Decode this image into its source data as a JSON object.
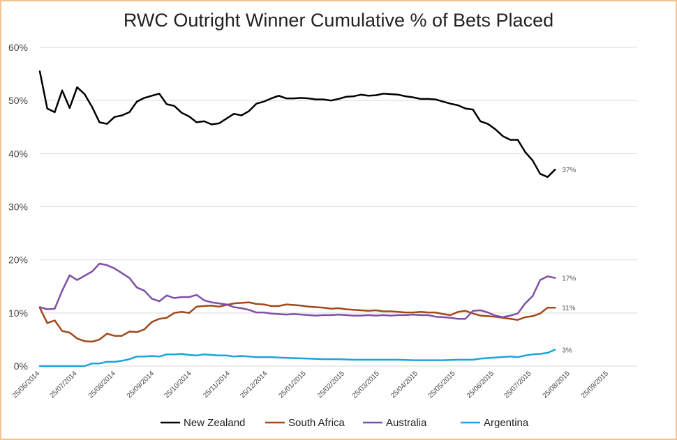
{
  "chart_data": {
    "type": "line",
    "title": "RWC Outright Winner Cumulative % of Bets Placed",
    "xlabel": "",
    "ylabel": "",
    "ylim": [
      0,
      60
    ],
    "yticks": [
      "0%",
      "10%",
      "20%",
      "30%",
      "40%",
      "50%",
      "60%"
    ],
    "grid": "horizontal",
    "legend_position": "bottom",
    "x_tick_labels": [
      "25/06/2014",
      "25/07/2014",
      "25/08/2014",
      "25/09/2014",
      "25/10/2014",
      "25/11/2014",
      "25/12/2014",
      "25/01/2015",
      "25/02/2015",
      "25/03/2015",
      "25/04/2015",
      "25/05/2015",
      "25/06/2015",
      "25/07/2015",
      "25/08/2015",
      "25/09/2015"
    ],
    "x_start": "2014-06-25",
    "x_end": "2015-10-18",
    "series": [
      {
        "name": "New Zealand",
        "color": "#000000",
        "end_label": "37%",
        "points": [
          [
            "2014-06-25",
            55.5
          ],
          [
            "2014-07-01",
            48.5
          ],
          [
            "2014-07-07",
            47.8
          ],
          [
            "2014-07-13",
            51.9
          ],
          [
            "2014-07-19",
            48.6
          ],
          [
            "2014-07-25",
            52.5
          ],
          [
            "2014-07-31",
            51.2
          ],
          [
            "2014-08-06",
            48.8
          ],
          [
            "2014-08-12",
            45.9
          ],
          [
            "2014-08-18",
            45.6
          ],
          [
            "2014-08-24",
            46.9
          ],
          [
            "2014-08-30",
            47.2
          ],
          [
            "2014-09-05",
            47.8
          ],
          [
            "2014-09-11",
            49.8
          ],
          [
            "2014-09-17",
            50.5
          ],
          [
            "2014-09-23",
            50.9
          ],
          [
            "2014-09-29",
            51.3
          ],
          [
            "2014-10-05",
            49.3
          ],
          [
            "2014-10-11",
            49.0
          ],
          [
            "2014-10-17",
            47.7
          ],
          [
            "2014-10-23",
            47.0
          ],
          [
            "2014-10-29",
            45.9
          ],
          [
            "2014-11-04",
            46.1
          ],
          [
            "2014-11-10",
            45.5
          ],
          [
            "2014-11-16",
            45.7
          ],
          [
            "2014-11-22",
            46.6
          ],
          [
            "2014-11-28",
            47.5
          ],
          [
            "2014-12-04",
            47.2
          ],
          [
            "2014-12-10",
            48.0
          ],
          [
            "2014-12-16",
            49.4
          ],
          [
            "2014-12-22",
            49.8
          ],
          [
            "2014-12-28",
            50.4
          ],
          [
            "2015-01-03",
            50.9
          ],
          [
            "2015-01-09",
            50.4
          ],
          [
            "2015-01-15",
            50.4
          ],
          [
            "2015-01-21",
            50.5
          ],
          [
            "2015-01-27",
            50.4
          ],
          [
            "2015-02-02",
            50.2
          ],
          [
            "2015-02-08",
            50.2
          ],
          [
            "2015-02-14",
            50.0
          ],
          [
            "2015-02-20",
            50.3
          ],
          [
            "2015-02-26",
            50.7
          ],
          [
            "2015-03-04",
            50.8
          ],
          [
            "2015-03-10",
            51.1
          ],
          [
            "2015-03-16",
            50.9
          ],
          [
            "2015-03-22",
            51.0
          ],
          [
            "2015-03-28",
            51.3
          ],
          [
            "2015-04-03",
            51.2
          ],
          [
            "2015-04-09",
            51.1
          ],
          [
            "2015-04-15",
            50.8
          ],
          [
            "2015-04-21",
            50.6
          ],
          [
            "2015-04-27",
            50.3
          ],
          [
            "2015-05-03",
            50.3
          ],
          [
            "2015-05-09",
            50.2
          ],
          [
            "2015-05-15",
            49.8
          ],
          [
            "2015-05-21",
            49.4
          ],
          [
            "2015-05-27",
            49.1
          ],
          [
            "2015-06-02",
            48.5
          ],
          [
            "2015-06-08",
            48.3
          ],
          [
            "2015-06-14",
            46.1
          ],
          [
            "2015-06-20",
            45.6
          ],
          [
            "2015-06-26",
            44.6
          ],
          [
            "2015-07-02",
            43.3
          ],
          [
            "2015-07-08",
            42.6
          ],
          [
            "2015-07-14",
            42.6
          ],
          [
            "2015-07-20",
            40.3
          ],
          [
            "2015-07-26",
            38.7
          ],
          [
            "2015-08-01",
            36.2
          ],
          [
            "2015-08-07",
            35.6
          ],
          [
            "2015-08-13",
            37.0
          ]
        ]
      },
      {
        "name": "South Africa",
        "color": "#a0491a",
        "end_label": "11%",
        "points": [
          [
            "2014-06-25",
            11.0
          ],
          [
            "2014-07-01",
            8.1
          ],
          [
            "2014-07-07",
            8.6
          ],
          [
            "2014-07-13",
            6.6
          ],
          [
            "2014-07-19",
            6.3
          ],
          [
            "2014-07-25",
            5.2
          ],
          [
            "2014-07-31",
            4.7
          ],
          [
            "2014-08-06",
            4.6
          ],
          [
            "2014-08-12",
            5.0
          ],
          [
            "2014-08-18",
            6.1
          ],
          [
            "2014-08-24",
            5.7
          ],
          [
            "2014-08-30",
            5.7
          ],
          [
            "2014-09-05",
            6.5
          ],
          [
            "2014-09-11",
            6.4
          ],
          [
            "2014-09-17",
            6.9
          ],
          [
            "2014-09-23",
            8.3
          ],
          [
            "2014-09-29",
            8.9
          ],
          [
            "2014-10-05",
            9.1
          ],
          [
            "2014-10-11",
            10.0
          ],
          [
            "2014-10-17",
            10.2
          ],
          [
            "2014-10-23",
            10.0
          ],
          [
            "2014-10-29",
            11.2
          ],
          [
            "2014-11-04",
            11.3
          ],
          [
            "2014-11-10",
            11.4
          ],
          [
            "2014-11-16",
            11.2
          ],
          [
            "2014-11-22",
            11.5
          ],
          [
            "2014-11-28",
            11.8
          ],
          [
            "2014-12-04",
            11.9
          ],
          [
            "2014-12-10",
            12.0
          ],
          [
            "2014-12-16",
            11.7
          ],
          [
            "2014-12-22",
            11.6
          ],
          [
            "2014-12-28",
            11.3
          ],
          [
            "2015-01-03",
            11.3
          ],
          [
            "2015-01-09",
            11.6
          ],
          [
            "2015-01-15",
            11.5
          ],
          [
            "2015-01-21",
            11.4
          ],
          [
            "2015-01-27",
            11.2
          ],
          [
            "2015-02-02",
            11.1
          ],
          [
            "2015-02-08",
            11.0
          ],
          [
            "2015-02-14",
            10.8
          ],
          [
            "2015-02-20",
            10.9
          ],
          [
            "2015-02-26",
            10.7
          ],
          [
            "2015-03-04",
            10.6
          ],
          [
            "2015-03-10",
            10.5
          ],
          [
            "2015-03-16",
            10.4
          ],
          [
            "2015-03-22",
            10.5
          ],
          [
            "2015-03-28",
            10.3
          ],
          [
            "2015-04-03",
            10.3
          ],
          [
            "2015-04-09",
            10.2
          ],
          [
            "2015-04-15",
            10.1
          ],
          [
            "2015-04-21",
            10.1
          ],
          [
            "2015-04-27",
            10.2
          ],
          [
            "2015-05-03",
            10.1
          ],
          [
            "2015-05-09",
            10.1
          ],
          [
            "2015-05-15",
            9.8
          ],
          [
            "2015-05-21",
            9.6
          ],
          [
            "2015-05-27",
            10.2
          ],
          [
            "2015-06-02",
            10.4
          ],
          [
            "2015-06-08",
            9.9
          ],
          [
            "2015-06-14",
            9.5
          ],
          [
            "2015-06-20",
            9.4
          ],
          [
            "2015-06-26",
            9.3
          ],
          [
            "2015-07-02",
            9.1
          ],
          [
            "2015-07-08",
            8.9
          ],
          [
            "2015-07-14",
            8.7
          ],
          [
            "2015-07-20",
            9.2
          ],
          [
            "2015-07-26",
            9.4
          ],
          [
            "2015-08-01",
            9.9
          ],
          [
            "2015-08-07",
            11.0
          ],
          [
            "2015-08-13",
            11.0
          ]
        ]
      },
      {
        "name": "Australia",
        "color": "#7f4fa8",
        "end_label": "17%",
        "points": [
          [
            "2014-06-25",
            11.1
          ],
          [
            "2014-07-01",
            10.7
          ],
          [
            "2014-07-07",
            10.8
          ],
          [
            "2014-07-13",
            14.2
          ],
          [
            "2014-07-19",
            17.1
          ],
          [
            "2014-07-25",
            16.2
          ],
          [
            "2014-07-31",
            17.0
          ],
          [
            "2014-08-06",
            17.8
          ],
          [
            "2014-08-12",
            19.3
          ],
          [
            "2014-08-18",
            19.0
          ],
          [
            "2014-08-24",
            18.4
          ],
          [
            "2014-08-30",
            17.5
          ],
          [
            "2014-09-05",
            16.6
          ],
          [
            "2014-09-11",
            14.8
          ],
          [
            "2014-09-17",
            14.2
          ],
          [
            "2014-09-23",
            12.7
          ],
          [
            "2014-09-29",
            12.2
          ],
          [
            "2014-10-05",
            13.3
          ],
          [
            "2014-10-11",
            12.8
          ],
          [
            "2014-10-17",
            13.0
          ],
          [
            "2014-10-23",
            13.0
          ],
          [
            "2014-10-29",
            13.4
          ],
          [
            "2014-11-04",
            12.4
          ],
          [
            "2014-11-10",
            12.0
          ],
          [
            "2014-11-16",
            11.8
          ],
          [
            "2014-11-22",
            11.6
          ],
          [
            "2014-11-28",
            11.1
          ],
          [
            "2014-12-04",
            10.9
          ],
          [
            "2014-12-10",
            10.6
          ],
          [
            "2014-12-16",
            10.1
          ],
          [
            "2014-12-22",
            10.1
          ],
          [
            "2014-12-28",
            9.9
          ],
          [
            "2015-01-03",
            9.8
          ],
          [
            "2015-01-09",
            9.7
          ],
          [
            "2015-01-15",
            9.8
          ],
          [
            "2015-01-21",
            9.7
          ],
          [
            "2015-01-27",
            9.6
          ],
          [
            "2015-02-02",
            9.5
          ],
          [
            "2015-02-08",
            9.6
          ],
          [
            "2015-02-14",
            9.6
          ],
          [
            "2015-02-20",
            9.7
          ],
          [
            "2015-02-26",
            9.6
          ],
          [
            "2015-03-04",
            9.5
          ],
          [
            "2015-03-10",
            9.5
          ],
          [
            "2015-03-16",
            9.6
          ],
          [
            "2015-03-22",
            9.5
          ],
          [
            "2015-03-28",
            9.6
          ],
          [
            "2015-04-03",
            9.5
          ],
          [
            "2015-04-09",
            9.6
          ],
          [
            "2015-04-15",
            9.6
          ],
          [
            "2015-04-21",
            9.7
          ],
          [
            "2015-04-27",
            9.6
          ],
          [
            "2015-05-03",
            9.6
          ],
          [
            "2015-05-09",
            9.3
          ],
          [
            "2015-05-15",
            9.2
          ],
          [
            "2015-05-21",
            9.1
          ],
          [
            "2015-05-27",
            8.9
          ],
          [
            "2015-06-02",
            8.9
          ],
          [
            "2015-06-08",
            10.4
          ],
          [
            "2015-06-14",
            10.5
          ],
          [
            "2015-06-20",
            10.1
          ],
          [
            "2015-06-26",
            9.5
          ],
          [
            "2015-07-02",
            9.2
          ],
          [
            "2015-07-08",
            9.5
          ],
          [
            "2015-07-14",
            9.9
          ],
          [
            "2015-07-20",
            11.8
          ],
          [
            "2015-07-26",
            13.2
          ],
          [
            "2015-08-01",
            16.2
          ],
          [
            "2015-08-07",
            16.9
          ],
          [
            "2015-08-13",
            16.6
          ]
        ]
      },
      {
        "name": "Argentina",
        "color": "#1ca3dc",
        "end_label": "3%",
        "points": [
          [
            "2014-06-25",
            0.0
          ],
          [
            "2014-07-07",
            0.0
          ],
          [
            "2014-07-19",
            0.0
          ],
          [
            "2014-07-31",
            0.0
          ],
          [
            "2014-08-06",
            0.5
          ],
          [
            "2014-08-12",
            0.5
          ],
          [
            "2014-08-18",
            0.8
          ],
          [
            "2014-08-24",
            0.8
          ],
          [
            "2014-08-30",
            1.0
          ],
          [
            "2014-09-05",
            1.3
          ],
          [
            "2014-09-11",
            1.8
          ],
          [
            "2014-09-17",
            1.8
          ],
          [
            "2014-09-23",
            1.9
          ],
          [
            "2014-09-29",
            1.8
          ],
          [
            "2014-10-05",
            2.2
          ],
          [
            "2014-10-11",
            2.2
          ],
          [
            "2014-10-17",
            2.3
          ],
          [
            "2014-10-23",
            2.1
          ],
          [
            "2014-10-29",
            2.0
          ],
          [
            "2014-11-04",
            2.2
          ],
          [
            "2014-11-10",
            2.1
          ],
          [
            "2014-11-16",
            2.0
          ],
          [
            "2014-11-22",
            2.0
          ],
          [
            "2014-11-28",
            1.8
          ],
          [
            "2014-12-04",
            1.9
          ],
          [
            "2014-12-10",
            1.8
          ],
          [
            "2014-12-16",
            1.7
          ],
          [
            "2014-12-22",
            1.7
          ],
          [
            "2014-12-28",
            1.7
          ],
          [
            "2015-01-03",
            1.6
          ],
          [
            "2015-01-15",
            1.5
          ],
          [
            "2015-01-27",
            1.4
          ],
          [
            "2015-02-08",
            1.3
          ],
          [
            "2015-02-20",
            1.3
          ],
          [
            "2015-03-04",
            1.2
          ],
          [
            "2015-03-16",
            1.2
          ],
          [
            "2015-03-28",
            1.2
          ],
          [
            "2015-04-09",
            1.2
          ],
          [
            "2015-04-21",
            1.1
          ],
          [
            "2015-05-03",
            1.1
          ],
          [
            "2015-05-15",
            1.1
          ],
          [
            "2015-05-27",
            1.2
          ],
          [
            "2015-06-08",
            1.2
          ],
          [
            "2015-06-14",
            1.4
          ],
          [
            "2015-06-26",
            1.6
          ],
          [
            "2015-07-08",
            1.8
          ],
          [
            "2015-07-14",
            1.7
          ],
          [
            "2015-07-20",
            2.0
          ],
          [
            "2015-07-26",
            2.2
          ],
          [
            "2015-08-01",
            2.3
          ],
          [
            "2015-08-07",
            2.5
          ],
          [
            "2015-08-13",
            3.1
          ]
        ]
      }
    ]
  }
}
